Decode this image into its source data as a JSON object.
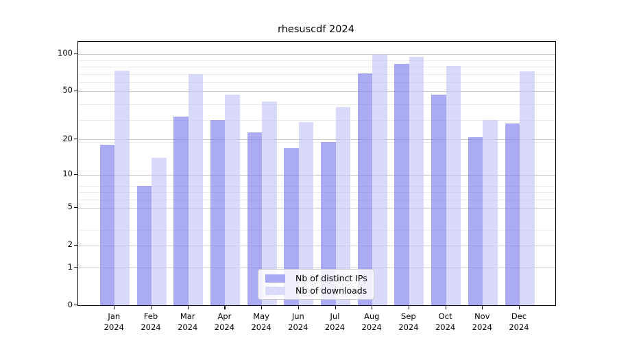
{
  "title": "rhesuscdf 2024",
  "legend": {
    "items": [
      {
        "label": "Nb of distinct IPs",
        "color": "#a9a9f3"
      },
      {
        "label": "Nb of downloads",
        "color": "#d9d9f8"
      }
    ]
  },
  "chart_data": {
    "type": "bar",
    "title": "rhesuscdf 2024",
    "categories": [
      "Jan",
      "Feb",
      "Mar",
      "Apr",
      "May",
      "Jun",
      "Jul",
      "Aug",
      "Sep",
      "Oct",
      "Nov",
      "Dec"
    ],
    "x_tick_year": "2024",
    "series": [
      {
        "name": "Nb of distinct IPs",
        "values": [
          18,
          8,
          31,
          29,
          23,
          17,
          19,
          70,
          83,
          47,
          21,
          27
        ],
        "color": "rgba(120,120,238,0.62)",
        "legend_color": "#a9a9f3"
      },
      {
        "name": "Nb of downloads",
        "values": [
          73,
          14,
          69,
          47,
          41,
          28,
          37,
          99,
          95,
          80,
          29,
          72
        ],
        "color": "rgba(194,194,247,0.62)",
        "legend_color": "#d9d9f8"
      }
    ],
    "yscale": "log1p",
    "ylim": [
      0,
      125
    ],
    "yticks": [
      0,
      1,
      2,
      5,
      10,
      20,
      50,
      100
    ],
    "minor_gridlines": [
      3,
      6,
      7,
      8,
      19,
      29,
      39,
      59,
      69,
      79,
      89
    ],
    "grid": "on",
    "legend_position": "lower center",
    "colors": {
      "grid_major": "#cccccc",
      "grid_minor": "#ececec",
      "axis": "#000000",
      "text": "#000000"
    }
  }
}
